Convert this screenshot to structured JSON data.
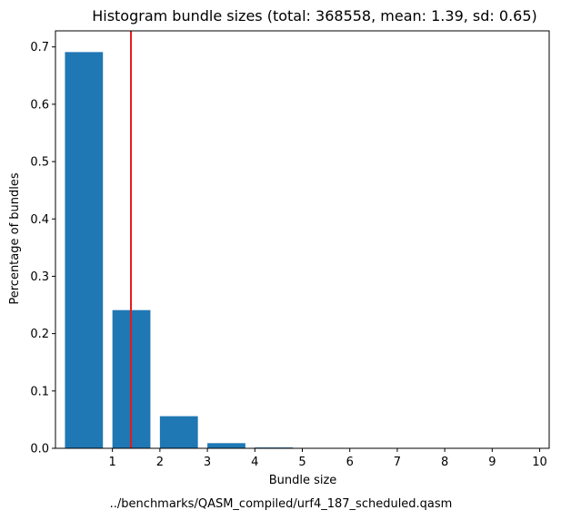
{
  "chart_data": {
    "type": "bar",
    "title": "Histogram bundle sizes (total: 368558, mean: 1.39, sd: 0.65)",
    "xlabel": "Bundle size",
    "ylabel": "Percentage of bundles",
    "caption": "../benchmarks/QASM_compiled/urf4_187_scheduled.qasm",
    "categories": [
      1,
      2,
      3,
      4,
      5,
      6,
      7,
      8,
      9,
      10
    ],
    "values": [
      0.691,
      0.241,
      0.056,
      0.009,
      0.0015,
      0.0003,
      0.0001,
      0,
      0,
      0
    ],
    "xlim": [
      -0.2,
      10.2
    ],
    "ylim": [
      0,
      0.728
    ],
    "xticks": [
      "1",
      "2",
      "3",
      "4",
      "5",
      "6",
      "7",
      "8",
      "9",
      "10"
    ],
    "yticks": [
      "0.0",
      "0.1",
      "0.2",
      "0.3",
      "0.4",
      "0.5",
      "0.6",
      "0.7"
    ],
    "ytick_values": [
      0,
      0.1,
      0.2,
      0.3,
      0.4,
      0.5,
      0.6,
      0.7
    ],
    "mean_line": 1.39,
    "bar_color": "#1f77b4",
    "mean_line_color": "#e41a1c",
    "grid": false
  }
}
